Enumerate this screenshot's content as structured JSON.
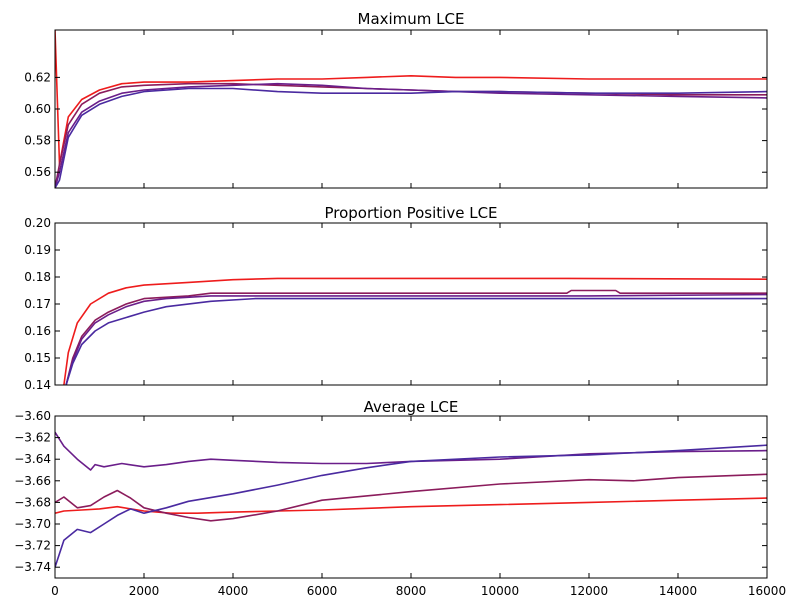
{
  "chart_data": [
    {
      "type": "line",
      "title": "Maximum LCE",
      "xlabel": "",
      "ylabel": "",
      "xlim": [
        0,
        16000
      ],
      "ylim": [
        0.55,
        0.65
      ],
      "yticks": [
        0.56,
        0.58,
        0.6,
        0.62
      ],
      "ytick_labels": [
        "0.56",
        "0.58",
        "0.60",
        "0.62"
      ],
      "yticks_major_only": true,
      "grid": false,
      "series": [
        {
          "color": "#ee1c1c",
          "x": [
            0,
            100,
            300,
            600,
            1000,
            1500,
            2000,
            3000,
            4000,
            5000,
            6000,
            7000,
            8000,
            9000,
            10000,
            12000,
            14000,
            16000
          ],
          "y": [
            0.65,
            0.565,
            0.595,
            0.606,
            0.612,
            0.616,
            0.617,
            0.617,
            0.618,
            0.619,
            0.619,
            0.62,
            0.621,
            0.62,
            0.62,
            0.619,
            0.619,
            0.619
          ]
        },
        {
          "color": "#8b1c5c",
          "x": [
            0,
            100,
            300,
            600,
            1000,
            1500,
            2000,
            3000,
            4000,
            5000,
            6000,
            7000,
            8000,
            9000,
            10000,
            12000,
            14000,
            16000
          ],
          "y": [
            0.55,
            0.565,
            0.59,
            0.603,
            0.61,
            0.614,
            0.615,
            0.616,
            0.616,
            0.615,
            0.614,
            0.613,
            0.612,
            0.611,
            0.611,
            0.61,
            0.609,
            0.609
          ]
        },
        {
          "color": "#6a1e8a",
          "x": [
            0,
            100,
            300,
            600,
            1000,
            1500,
            2000,
            3000,
            4000,
            5000,
            6000,
            7000,
            8000,
            9000,
            10000,
            12000,
            14000,
            16000
          ],
          "y": [
            0.55,
            0.56,
            0.585,
            0.598,
            0.605,
            0.61,
            0.612,
            0.614,
            0.615,
            0.616,
            0.615,
            0.613,
            0.612,
            0.611,
            0.61,
            0.609,
            0.608,
            0.607
          ]
        },
        {
          "color": "#4a2aa0",
          "x": [
            0,
            100,
            300,
            600,
            1000,
            1500,
            2000,
            3000,
            4000,
            5000,
            6000,
            7000,
            8000,
            9000,
            10000,
            12000,
            14000,
            16000
          ],
          "y": [
            0.55,
            0.555,
            0.582,
            0.596,
            0.603,
            0.608,
            0.611,
            0.613,
            0.613,
            0.611,
            0.61,
            0.61,
            0.61,
            0.611,
            0.611,
            0.61,
            0.61,
            0.611
          ]
        }
      ]
    },
    {
      "type": "line",
      "title": "Proportion Positive LCE",
      "xlabel": "",
      "ylabel": "",
      "xlim": [
        0,
        16000
      ],
      "ylim": [
        0.14,
        0.2
      ],
      "yticks": [
        0.14,
        0.15,
        0.16,
        0.17,
        0.18,
        0.19,
        0.2
      ],
      "ytick_labels": [
        "0.14",
        "0.15",
        "0.16",
        "0.17",
        "0.18",
        "0.19",
        "0.20"
      ],
      "grid": false,
      "series": [
        {
          "color": "#ee1c1c",
          "x": [
            200,
            300,
            500,
            800,
            1200,
            1600,
            2000,
            3000,
            4000,
            5000,
            8000,
            11500,
            16000
          ],
          "y": [
            0.14,
            0.152,
            0.163,
            0.17,
            0.174,
            0.176,
            0.177,
            0.178,
            0.179,
            0.1795,
            0.1795,
            0.1795,
            0.1792
          ]
        },
        {
          "color": "#8b1c5c",
          "x": [
            250,
            400,
            600,
            900,
            1200,
            1600,
            2000,
            3000,
            3500,
            5000,
            8000,
            11500,
            11600,
            12600,
            12700,
            16000
          ],
          "y": [
            0.14,
            0.15,
            0.158,
            0.164,
            0.167,
            0.17,
            0.172,
            0.173,
            0.174,
            0.174,
            0.174,
            0.174,
            0.175,
            0.175,
            0.174,
            0.174
          ]
        },
        {
          "color": "#6a1e8a",
          "x": [
            250,
            400,
            600,
            900,
            1200,
            1600,
            2000,
            2500,
            3500,
            4500,
            8000,
            12000,
            16000
          ],
          "y": [
            0.14,
            0.149,
            0.157,
            0.163,
            0.166,
            0.169,
            0.171,
            0.172,
            0.173,
            0.173,
            0.173,
            0.173,
            0.1735
          ]
        },
        {
          "color": "#4a2aa0",
          "x": [
            250,
            400,
            600,
            900,
            1200,
            1600,
            2000,
            2500,
            3500,
            4500,
            8000,
            12000,
            16000
          ],
          "y": [
            0.14,
            0.148,
            0.155,
            0.16,
            0.163,
            0.165,
            0.167,
            0.169,
            0.171,
            0.172,
            0.172,
            0.172,
            0.172
          ]
        }
      ]
    },
    {
      "type": "line",
      "title": "Average LCE",
      "xlabel": "",
      "ylabel": "",
      "xlim": [
        0,
        16000
      ],
      "ylim": [
        -3.75,
        -3.6
      ],
      "yticks": [
        -3.62,
        -3.64,
        -3.66,
        -3.68,
        -3.7,
        -3.72,
        -3.74,
        -3.6
      ],
      "ytick_labels": [
        "−3.62",
        "−3.64",
        "−3.66",
        "−3.68",
        "−3.70",
        "−3.72",
        "−3.74",
        "−3.60"
      ],
      "xticks": [
        0,
        2000,
        4000,
        6000,
        8000,
        10000,
        12000,
        14000,
        16000
      ],
      "xtick_labels": [
        "0",
        "2000",
        "4000",
        "6000",
        "8000",
        "10000",
        "12000",
        "14000",
        "16000"
      ],
      "grid": false,
      "series": [
        {
          "color": "#ee1c1c",
          "x": [
            0,
            200,
            600,
            1000,
            1400,
            2000,
            2600,
            3200,
            4000,
            5000,
            6000,
            8000,
            10000,
            12000,
            14000,
            16000
          ],
          "y": [
            -3.69,
            -3.688,
            -3.687,
            -3.686,
            -3.684,
            -3.688,
            -3.69,
            -3.69,
            -3.689,
            -3.688,
            -3.687,
            -3.684,
            -3.682,
            -3.68,
            -3.678,
            -3.676
          ]
        },
        {
          "color": "#8b1c5c",
          "x": [
            0,
            200,
            500,
            800,
            1100,
            1400,
            1700,
            2000,
            2500,
            3000,
            3500,
            4000,
            5000,
            6000,
            8000,
            10000,
            12000,
            13000,
            14000,
            16000
          ],
          "y": [
            -3.68,
            -3.675,
            -3.685,
            -3.683,
            -3.675,
            -3.669,
            -3.676,
            -3.685,
            -3.69,
            -3.694,
            -3.697,
            -3.695,
            -3.688,
            -3.678,
            -3.67,
            -3.663,
            -3.659,
            -3.66,
            -3.657,
            -3.654
          ]
        },
        {
          "color": "#6a1e8a",
          "x": [
            0,
            200,
            500,
            800,
            900,
            1100,
            1500,
            2000,
            2500,
            3000,
            3500,
            4000,
            5000,
            6000,
            7000,
            8000,
            10000,
            12000,
            14000,
            16000
          ],
          "y": [
            -3.615,
            -3.628,
            -3.64,
            -3.65,
            -3.645,
            -3.647,
            -3.644,
            -3.647,
            -3.645,
            -3.642,
            -3.64,
            -3.641,
            -3.643,
            -3.644,
            -3.644,
            -3.642,
            -3.64,
            -3.635,
            -3.633,
            -3.632
          ]
        },
        {
          "color": "#4a2aa0",
          "x": [
            0,
            200,
            500,
            800,
            1100,
            1400,
            1700,
            2000,
            2500,
            3000,
            4000,
            5000,
            6000,
            7000,
            8000,
            10000,
            12000,
            14000,
            16000
          ],
          "y": [
            -3.74,
            -3.715,
            -3.705,
            -3.708,
            -3.7,
            -3.692,
            -3.686,
            -3.69,
            -3.685,
            -3.679,
            -3.672,
            -3.664,
            -3.655,
            -3.648,
            -3.642,
            -3.638,
            -3.636,
            -3.632,
            -3.627
          ]
        }
      ]
    }
  ]
}
